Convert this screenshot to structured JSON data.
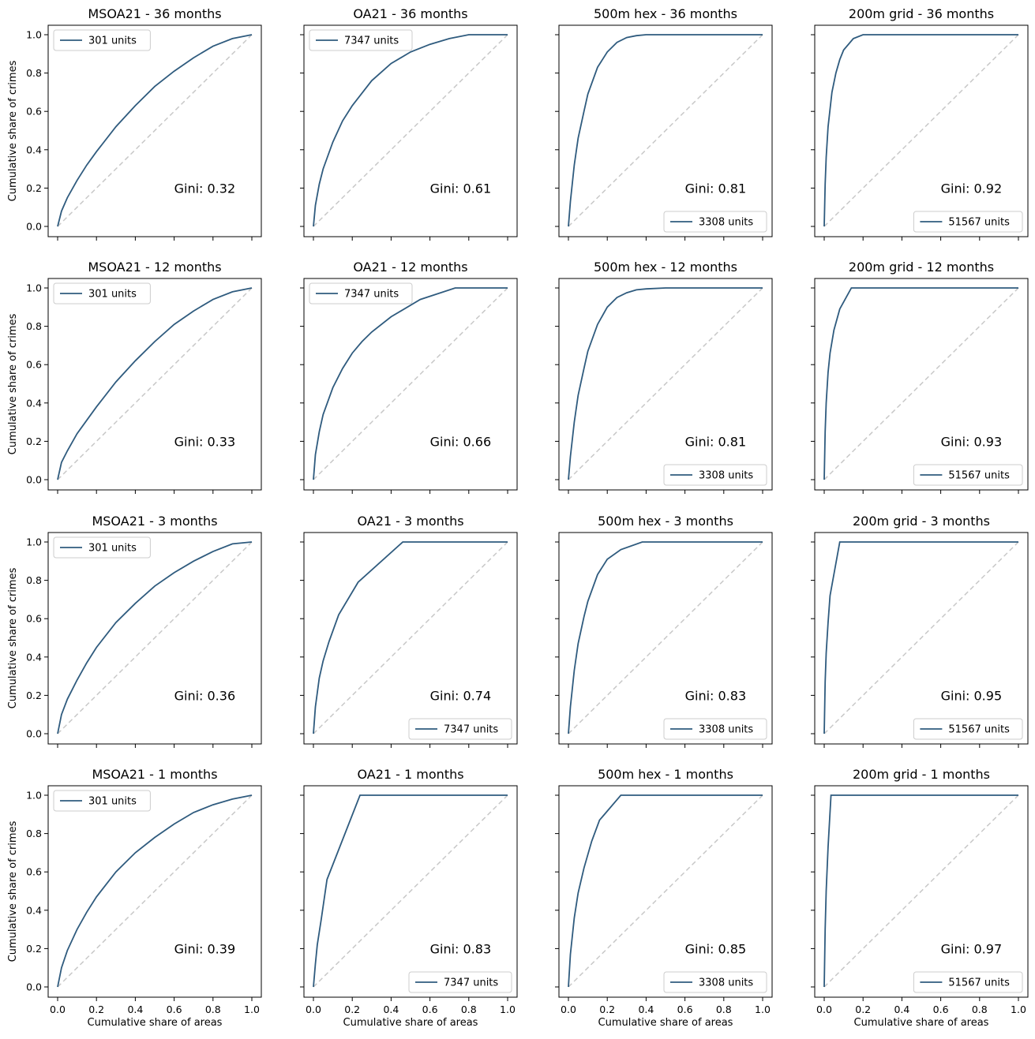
{
  "chart_data": [
    {
      "type": "line",
      "title": "MSOA21 - 36 months",
      "gini": "Gini: 0.32",
      "legend": "301 units",
      "legend_loc": "upper-left",
      "ylabel": "Cumulative share of crimes",
      "xlabel": "",
      "xlim": [
        0,
        1
      ],
      "ylim": [
        0,
        1
      ],
      "x": [
        0,
        0.02,
        0.05,
        0.1,
        0.15,
        0.2,
        0.3,
        0.4,
        0.5,
        0.6,
        0.7,
        0.8,
        0.9,
        1.0
      ],
      "y": [
        0,
        0.08,
        0.15,
        0.24,
        0.32,
        0.39,
        0.52,
        0.63,
        0.73,
        0.81,
        0.88,
        0.94,
        0.98,
        1.0
      ]
    },
    {
      "type": "line",
      "title": "OA21 - 36 months",
      "gini": "Gini: 0.61",
      "legend": "7347 units",
      "legend_loc": "upper-left",
      "ylabel": "",
      "xlabel": "",
      "xlim": [
        0,
        1
      ],
      "ylim": [
        0,
        1
      ],
      "x": [
        0,
        0.01,
        0.03,
        0.05,
        0.1,
        0.15,
        0.2,
        0.3,
        0.4,
        0.5,
        0.6,
        0.7,
        0.8,
        0.9,
        1.0
      ],
      "y": [
        0,
        0.11,
        0.22,
        0.3,
        0.44,
        0.55,
        0.63,
        0.76,
        0.85,
        0.91,
        0.95,
        0.98,
        1.0,
        1.0,
        1.0
      ]
    },
    {
      "type": "line",
      "title": "500m hex - 36 months",
      "gini": "Gini: 0.81",
      "legend": "3308 units",
      "legend_loc": "lower-right",
      "ylabel": "",
      "xlabel": "",
      "xlim": [
        0,
        1
      ],
      "ylim": [
        0,
        1
      ],
      "x": [
        0,
        0.01,
        0.03,
        0.05,
        0.08,
        0.1,
        0.15,
        0.2,
        0.25,
        0.3,
        0.35,
        0.4,
        0.45,
        0.5,
        1.0
      ],
      "y": [
        0,
        0.13,
        0.32,
        0.46,
        0.6,
        0.69,
        0.83,
        0.91,
        0.96,
        0.985,
        0.995,
        1.0,
        1.0,
        1.0,
        1.0
      ]
    },
    {
      "type": "line",
      "title": "200m grid - 36 months",
      "gini": "Gini: 0.92",
      "legend": "51567 units",
      "legend_loc": "lower-right",
      "ylabel": "",
      "xlabel": "",
      "xlim": [
        0,
        1
      ],
      "ylim": [
        0,
        1
      ],
      "x": [
        0,
        0.005,
        0.01,
        0.02,
        0.04,
        0.06,
        0.08,
        0.1,
        0.15,
        0.2,
        1.0
      ],
      "y": [
        0,
        0.22,
        0.36,
        0.52,
        0.7,
        0.8,
        0.87,
        0.92,
        0.98,
        1.0,
        1.0
      ]
    },
    {
      "type": "line",
      "title": "MSOA21 - 12 months",
      "gini": "Gini: 0.33",
      "legend": "301 units",
      "legend_loc": "upper-left",
      "ylabel": "Cumulative share of crimes",
      "xlabel": "",
      "xlim": [
        0,
        1
      ],
      "ylim": [
        0,
        1
      ],
      "x": [
        0,
        0.02,
        0.05,
        0.1,
        0.15,
        0.2,
        0.3,
        0.4,
        0.5,
        0.6,
        0.7,
        0.8,
        0.9,
        1.0
      ],
      "y": [
        0,
        0.09,
        0.15,
        0.24,
        0.31,
        0.38,
        0.51,
        0.62,
        0.72,
        0.81,
        0.88,
        0.94,
        0.98,
        1.0
      ]
    },
    {
      "type": "line",
      "title": "OA21 - 12 months",
      "gini": "Gini: 0.66",
      "legend": "7347 units",
      "legend_loc": "upper-left",
      "ylabel": "",
      "xlabel": "",
      "xlim": [
        0,
        1
      ],
      "ylim": [
        0,
        1
      ],
      "x": [
        0,
        0.01,
        0.03,
        0.05,
        0.1,
        0.15,
        0.2,
        0.25,
        0.3,
        0.4,
        0.55,
        0.73,
        1.0
      ],
      "y": [
        0,
        0.13,
        0.25,
        0.34,
        0.48,
        0.58,
        0.66,
        0.72,
        0.77,
        0.85,
        0.94,
        1.0,
        1.0
      ]
    },
    {
      "type": "line",
      "title": "500m hex - 12 months",
      "gini": "Gini: 0.81",
      "legend": "3308 units",
      "legend_loc": "lower-right",
      "ylabel": "",
      "xlabel": "",
      "xlim": [
        0,
        1
      ],
      "ylim": [
        0,
        1
      ],
      "x": [
        0,
        0.01,
        0.03,
        0.05,
        0.08,
        0.1,
        0.15,
        0.2,
        0.25,
        0.3,
        0.35,
        0.4,
        0.5,
        1.0
      ],
      "y": [
        0,
        0.12,
        0.3,
        0.44,
        0.58,
        0.67,
        0.81,
        0.9,
        0.95,
        0.975,
        0.99,
        0.995,
        1.0,
        1.0
      ]
    },
    {
      "type": "line",
      "title": "200m grid - 12 months",
      "gini": "Gini: 0.93",
      "legend": "51567 units",
      "legend_loc": "lower-right",
      "ylabel": "",
      "xlabel": "",
      "xlim": [
        0,
        1
      ],
      "ylim": [
        0,
        1
      ],
      "x": [
        0,
        0.005,
        0.01,
        0.02,
        0.03,
        0.05,
        0.08,
        0.14,
        1.0
      ],
      "y": [
        0,
        0.25,
        0.4,
        0.56,
        0.66,
        0.78,
        0.89,
        1.0,
        1.0
      ]
    },
    {
      "type": "line",
      "title": "MSOA21 - 3 months",
      "gini": "Gini: 0.36",
      "legend": "301 units",
      "legend_loc": "upper-left",
      "ylabel": "Cumulative share of crimes",
      "xlabel": "",
      "xlim": [
        0,
        1
      ],
      "ylim": [
        0,
        1
      ],
      "x": [
        0,
        0.02,
        0.05,
        0.1,
        0.15,
        0.2,
        0.3,
        0.4,
        0.5,
        0.6,
        0.7,
        0.8,
        0.9,
        1.0
      ],
      "y": [
        0,
        0.1,
        0.18,
        0.28,
        0.37,
        0.45,
        0.58,
        0.68,
        0.77,
        0.84,
        0.9,
        0.95,
        0.99,
        1.0
      ]
    },
    {
      "type": "line",
      "title": "OA21 - 3 months",
      "gini": "Gini: 0.74",
      "legend": "7347 units",
      "legend_loc": "lower-right",
      "ylabel": "",
      "xlabel": "",
      "xlim": [
        0,
        1
      ],
      "ylim": [
        0,
        1
      ],
      "x": [
        0,
        0.01,
        0.03,
        0.05,
        0.08,
        0.13,
        0.23,
        0.46,
        1.0
      ],
      "y": [
        0,
        0.14,
        0.29,
        0.38,
        0.48,
        0.62,
        0.79,
        1.0,
        1.0
      ]
    },
    {
      "type": "line",
      "title": "500m hex - 3 months",
      "gini": "Gini: 0.83",
      "legend": "3308 units",
      "legend_loc": "lower-right",
      "ylabel": "",
      "xlabel": "",
      "xlim": [
        0,
        1
      ],
      "ylim": [
        0,
        1
      ],
      "x": [
        0,
        0.01,
        0.03,
        0.05,
        0.08,
        0.1,
        0.15,
        0.2,
        0.27,
        0.38,
        1.0
      ],
      "y": [
        0,
        0.14,
        0.33,
        0.47,
        0.61,
        0.69,
        0.83,
        0.91,
        0.96,
        1.0,
        1.0
      ]
    },
    {
      "type": "line",
      "title": "200m grid - 3 months",
      "gini": "Gini: 0.95",
      "legend": "51567 units",
      "legend_loc": "lower-right",
      "ylabel": "",
      "xlabel": "",
      "xlim": [
        0,
        1
      ],
      "ylim": [
        0,
        1
      ],
      "x": [
        0,
        0.005,
        0.01,
        0.02,
        0.03,
        0.08,
        1.0
      ],
      "y": [
        0,
        0.27,
        0.42,
        0.58,
        0.72,
        1.0,
        1.0
      ]
    },
    {
      "type": "line",
      "title": "MSOA21 - 1 months",
      "gini": "Gini: 0.39",
      "legend": "301 units",
      "legend_loc": "upper-left",
      "ylabel": "Cumulative share of crimes",
      "xlabel": "Cumulative share of areas",
      "xlim": [
        0,
        1
      ],
      "ylim": [
        0,
        1
      ],
      "x": [
        0,
        0.02,
        0.05,
        0.1,
        0.15,
        0.2,
        0.3,
        0.4,
        0.5,
        0.6,
        0.7,
        0.8,
        0.9,
        1.0
      ],
      "y": [
        0,
        0.1,
        0.19,
        0.3,
        0.39,
        0.47,
        0.6,
        0.7,
        0.78,
        0.85,
        0.91,
        0.95,
        0.98,
        1.0
      ]
    },
    {
      "type": "line",
      "title": "OA21 - 1 months",
      "gini": "Gini: 0.83",
      "legend": "7347 units",
      "legend_loc": "lower-right",
      "ylabel": "",
      "xlabel": "Cumulative share of areas",
      "xlim": [
        0,
        1
      ],
      "ylim": [
        0,
        1
      ],
      "x": [
        0,
        0.01,
        0.02,
        0.04,
        0.07,
        0.24,
        1.0
      ],
      "y": [
        0,
        0.12,
        0.22,
        0.35,
        0.56,
        1.0,
        1.0
      ]
    },
    {
      "type": "line",
      "title": "500m hex - 1 months",
      "gini": "Gini: 0.85",
      "legend": "3308 units",
      "legend_loc": "lower-right",
      "ylabel": "",
      "xlabel": "Cumulative share of areas",
      "xlim": [
        0,
        1
      ],
      "ylim": [
        0,
        1
      ],
      "x": [
        0,
        0.01,
        0.03,
        0.05,
        0.08,
        0.12,
        0.16,
        0.27,
        1.0
      ],
      "y": [
        0,
        0.17,
        0.36,
        0.49,
        0.62,
        0.76,
        0.87,
        1.0,
        1.0
      ]
    },
    {
      "type": "line",
      "title": "200m grid - 1 months",
      "gini": "Gini: 0.97",
      "legend": "51567 units",
      "legend_loc": "lower-right",
      "ylabel": "",
      "xlabel": "Cumulative share of areas",
      "xlim": [
        0,
        1
      ],
      "ylim": [
        0,
        1
      ],
      "x": [
        0,
        0.005,
        0.01,
        0.02,
        0.035,
        1.0
      ],
      "y": [
        0,
        0.3,
        0.5,
        0.73,
        1.0,
        1.0
      ]
    }
  ],
  "ticks": [
    "0.0",
    "0.2",
    "0.4",
    "0.6",
    "0.8",
    "1.0"
  ],
  "colors": {
    "line": "#2f5b7e",
    "diagonal": "#c8c8c8",
    "frame": "#000000",
    "legend_border": "#cccccc"
  }
}
